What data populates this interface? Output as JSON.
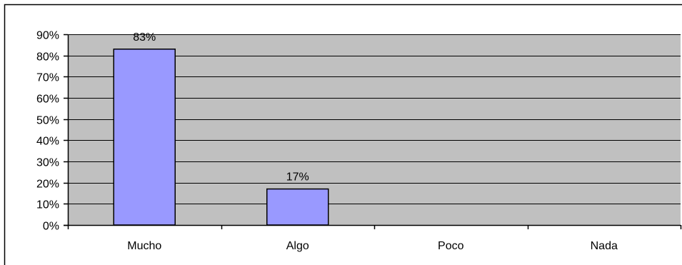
{
  "chart_data": {
    "type": "bar",
    "categories": [
      "Mucho",
      "Algo",
      "Poco",
      "Nada"
    ],
    "values": [
      83,
      17,
      null,
      null
    ],
    "data_labels": [
      "83%",
      "17%",
      "",
      ""
    ],
    "yticks": [
      "0%",
      "10%",
      "20%",
      "30%",
      "40%",
      "50%",
      "60%",
      "70%",
      "80%",
      "90%"
    ],
    "ylim": [
      0,
      90
    ],
    "grid": true,
    "title": "",
    "xlabel": "",
    "ylabel": "",
    "colors": {
      "bar_fill": "#9999ff",
      "bar_stroke": "#000000",
      "plot_bg": "#c0c0c0",
      "gridline": "#000000",
      "frame": "#000000"
    }
  }
}
